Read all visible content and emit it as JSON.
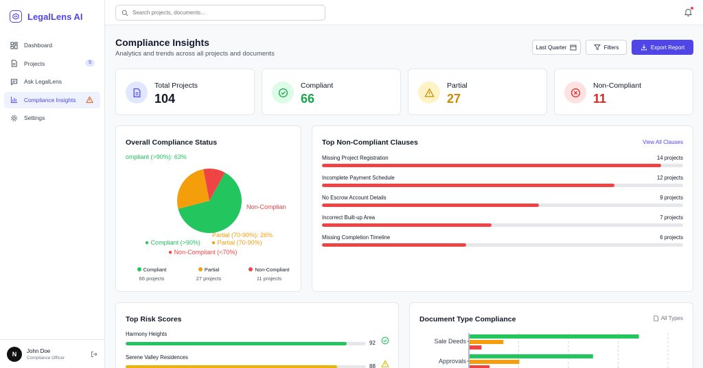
{
  "app": {
    "name": "LegalLens AI"
  },
  "sidebar": {
    "items": [
      {
        "label": "Dashboard",
        "icon": "dashboard-icon"
      },
      {
        "label": "Projects",
        "icon": "document-icon",
        "badge": "5"
      },
      {
        "label": "Ask LegalLens",
        "icon": "chat-icon"
      },
      {
        "label": "Compliance Insights",
        "icon": "bar-chart-icon",
        "active": true,
        "warning": true
      },
      {
        "label": "Settings",
        "icon": "gear-icon"
      }
    ],
    "user": {
      "name": "John Doe",
      "role": "Compliance Officer",
      "initial": "N"
    }
  },
  "search": {
    "placeholder": "Search projects, documents..."
  },
  "header": {
    "title": "Compliance Insights",
    "subtitle": "Analytics and trends across all projects and documents",
    "period": "Last Quarter",
    "filters": "Filters",
    "export": "Export Report"
  },
  "stats": [
    {
      "label": "Total Projects",
      "value": "104",
      "color": "#111827",
      "bg": "#e0e7ff",
      "icon": "document-icon",
      "iconColor": "#4f46e5"
    },
    {
      "label": "Compliant",
      "value": "66",
      "color": "#16a34a",
      "bg": "#dcfce7",
      "icon": "check-circle-icon",
      "iconColor": "#16a34a"
    },
    {
      "label": "Partial",
      "value": "27",
      "color": "#ca8a04",
      "bg": "#fef3c7",
      "icon": "warning-icon",
      "iconColor": "#ca8a04"
    },
    {
      "label": "Non-Compliant",
      "value": "11",
      "color": "#dc2626",
      "bg": "#fee2e2",
      "icon": "x-circle-icon",
      "iconColor": "#dc2626"
    }
  ],
  "overall": {
    "title": "Overall Compliance Status",
    "pie_labels": {
      "compliant": "ompliant (>90%): 63%",
      "noncompliant": "Non-Complian",
      "partial": "Partial (70-90%): 26%"
    },
    "legend": [
      "Compliant (>90%)",
      "Partial (70-90%)",
      "Non-Compliant (<70%)"
    ],
    "summary": [
      {
        "label": "Compliant",
        "sub": "66 projects"
      },
      {
        "label": "Partial",
        "sub": "27 projects"
      },
      {
        "label": "Non-Compliant",
        "sub": "11 projects"
      }
    ]
  },
  "chart_data": [
    {
      "type": "pie",
      "title": "Overall Compliance Status",
      "categories": [
        "Compliant (>90%)",
        "Partial (70-90%)",
        "Non-Compliant (<70%)"
      ],
      "values": [
        63,
        26,
        11
      ],
      "colors": [
        "#22c55e",
        "#f59e0b",
        "#ef4444"
      ]
    },
    {
      "type": "bar",
      "categories": [
        "Sale Deeds",
        "Approvals"
      ],
      "series": [
        {
          "values": [
            85,
            62
          ],
          "color": "#22c55e"
        },
        {
          "values": [
            17,
            25
          ],
          "color": "#f59e0b"
        },
        {
          "values": [
            6,
            10
          ],
          "color": "#ef4444"
        }
      ]
    }
  ],
  "clauses": {
    "title": "Top Non-Compliant Clauses",
    "link": "View All Clauses",
    "items": [
      {
        "name": "Missing Project Registration",
        "count": "14 projects",
        "pct": 0.94
      },
      {
        "name": "Incomplete Payment Schedule",
        "count": "12 projects",
        "pct": 0.81
      },
      {
        "name": "No Escrow Account Details",
        "count": "9 projects",
        "pct": 0.6
      },
      {
        "name": "Incorrect Built-up Area",
        "count": "7 projects",
        "pct": 0.47
      },
      {
        "name": "Missing Completion Timeline",
        "count": "6 projects",
        "pct": 0.4
      }
    ]
  },
  "risk": {
    "title": "Top Risk Scores",
    "items": [
      {
        "name": "Harmony Heights",
        "score": "92",
        "pct": 0.92,
        "color": "#22c55e",
        "icon": "check-circle-icon"
      },
      {
        "name": "Serene Valley Residences",
        "score": "88",
        "pct": 0.88,
        "color": "#eab308",
        "icon": "warning-icon"
      }
    ]
  },
  "doctype": {
    "title": "Document Type Compliance",
    "filter": "All Types"
  }
}
